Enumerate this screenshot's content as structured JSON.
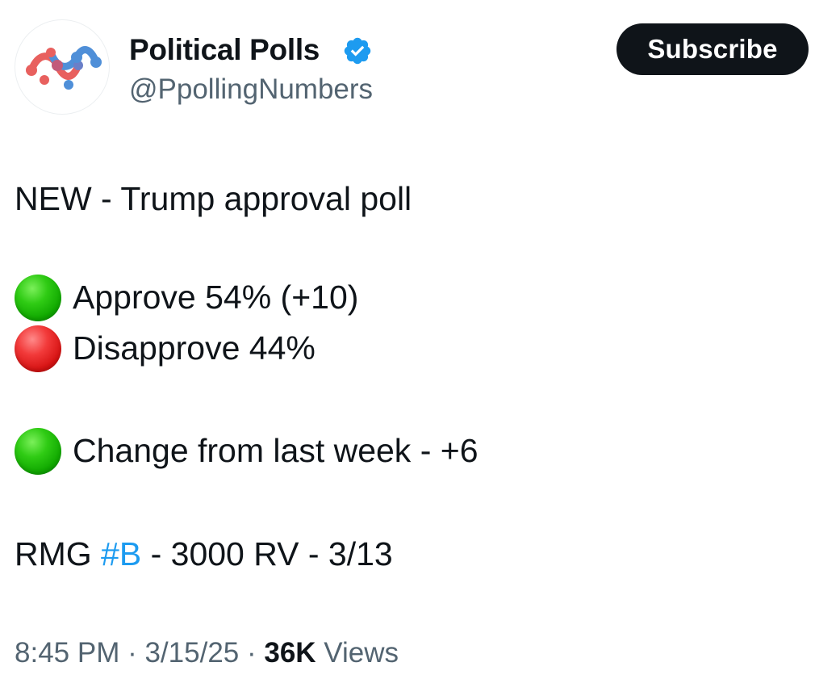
{
  "account": {
    "display_name": "Political Polls",
    "handle": "@PpollingNumbers",
    "verified_icon": "verified-badge-icon",
    "avatar_icon": "political-polls-logo",
    "verified_color": "#1d9bf0"
  },
  "subscribe": {
    "label": "Subscribe"
  },
  "tweet": {
    "headline": "NEW - Trump approval poll",
    "approve": {
      "icon": "green-circle-icon",
      "text": "Approve 54% (+10)"
    },
    "disapprove": {
      "icon": "red-circle-icon",
      "text": "Disapprove 44%"
    },
    "change": {
      "icon": "green-circle-icon",
      "text": "Change from last week - +6"
    },
    "source": {
      "prefix": "RMG ",
      "hashtag": "#B",
      "suffix": " - 3000 RV - 3/13"
    }
  },
  "meta": {
    "time": "8:45 PM",
    "separator": " · ",
    "date": "3/15/25",
    "views_count": "36K",
    "views_label": " Views"
  },
  "colors": {
    "text": "#0f1419",
    "secondary": "#536471",
    "link": "#1d9bf0",
    "button_bg": "#0f1419"
  }
}
